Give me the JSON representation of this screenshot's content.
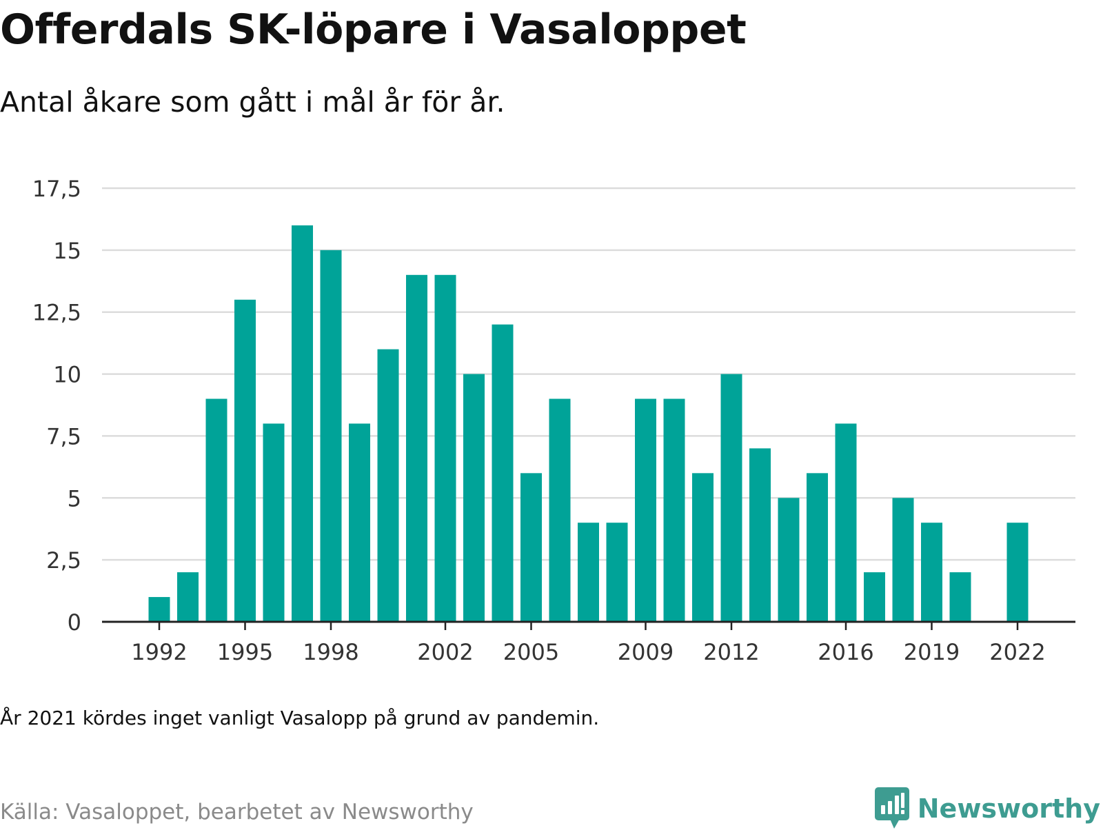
{
  "header": {
    "title": "Offerdals SK-löpare i Vasaloppet",
    "subtitle": "Antal åkare som gått i mål år för år."
  },
  "footer": {
    "note": "År 2021 kördes inget vanligt Vasalopp på grund av pandemin.",
    "source": "Källa: Vasaloppet, bearbetet av Newsworthy",
    "brand": "Newsworthy",
    "brand_icon": "newsworthy-logo-icon"
  },
  "colors": {
    "bar": "#00a398",
    "grid": "#dcdcdc",
    "axis": "#222222",
    "brand": "#3e9c91"
  },
  "chart_data": {
    "type": "bar",
    "title": "Offerdals SK-löpare i Vasaloppet",
    "subtitle": "Antal åkare som gått i mål år för år.",
    "categories": [
      1990,
      1991,
      1992,
      1993,
      1994,
      1995,
      1996,
      1997,
      1998,
      1999,
      2000,
      2001,
      2002,
      2003,
      2004,
      2005,
      2006,
      2007,
      2008,
      2009,
      2010,
      2011,
      2012,
      2013,
      2014,
      2015,
      2016,
      2017,
      2018,
      2019,
      2020,
      2021,
      2022,
      2023
    ],
    "values": [
      0,
      0,
      1,
      2,
      9,
      13,
      8,
      16,
      15,
      8,
      11,
      14,
      14,
      10,
      12,
      6,
      9,
      4,
      4,
      9,
      9,
      6,
      10,
      7,
      5,
      6,
      8,
      2,
      5,
      4,
      2,
      0,
      4,
      0
    ],
    "x_tick_labels": [
      "1992",
      "1995",
      "1998",
      "2002",
      "2005",
      "2009",
      "2012",
      "2016",
      "2019",
      "2022"
    ],
    "y_ticks": [
      0,
      2.5,
      5,
      7.5,
      10,
      12.5,
      15,
      17.5
    ],
    "y_tick_labels": [
      "0",
      "2,5",
      "5",
      "7,5",
      "10",
      "12,5",
      "15",
      "17,5"
    ],
    "ylim": [
      0,
      17.5
    ],
    "xlabel": "",
    "ylabel": "",
    "grid": true,
    "legend": "none"
  }
}
